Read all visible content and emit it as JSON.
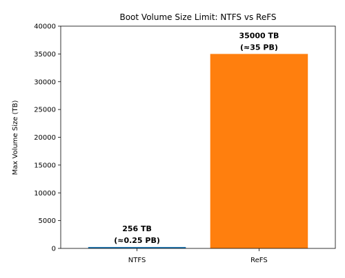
{
  "chart_data": {
    "type": "bar",
    "title": "Boot Volume Size Limit: NTFS vs ReFS",
    "xlabel": "",
    "ylabel": "Max Volume Size (TB)",
    "categories": [
      "NTFS",
      "ReFS"
    ],
    "values": [
      256,
      35000
    ],
    "colors": [
      "#1f77b4",
      "#ff7f0e"
    ],
    "ylim": [
      0,
      40000
    ],
    "yticks": [
      0,
      5000,
      10000,
      15000,
      20000,
      25000,
      30000,
      35000,
      40000
    ],
    "ytick_labels": [
      "0",
      "5000",
      "10000",
      "15000",
      "20000",
      "25000",
      "30000",
      "35000",
      "40000"
    ],
    "data_labels": [
      [
        "256 TB",
        "(≈0.25 PB)"
      ],
      [
        "35000 TB",
        "(≈35 PB)"
      ]
    ],
    "grid": false,
    "legend": "none"
  }
}
